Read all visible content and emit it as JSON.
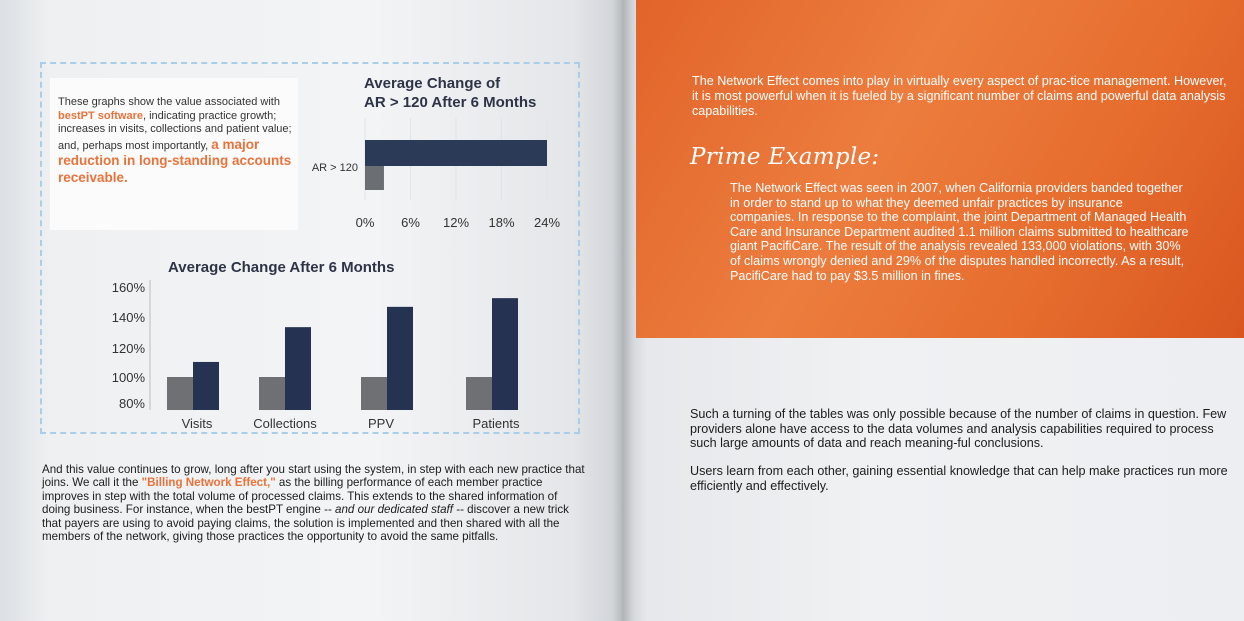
{
  "left_page": {
    "intro": {
      "part1": "These graphs show the value associated with ",
      "highlight": "bestPT software",
      "part2": ", indicating practice growth; increases in visits, collections and patient value; and, perhaps most importantly, ",
      "big_highlight": "a major reduction in long-standing accounts receivable."
    },
    "body": {
      "part1": "And this value continues to grow, long after you start using the system, in step with each new practice that joins. We call it the ",
      "highlight": "\"Billing Network Effect,\"",
      "part2": " as the billing performance of each member practice improves in step with the total volume of processed claims. This extends to the shared information of doing business. For instance, when the bestPT engine -- ",
      "italic": "and our dedicated staff",
      "part3": " -- discover a new trick that payers are using to avoid paying claims, the solution is implemented and then shared with all the members of the network, giving those practices the opportunity to avoid the same pitfalls."
    }
  },
  "chart_data": [
    {
      "type": "bar",
      "orientation": "horizontal",
      "title_line1": "Average Change of",
      "title_line2": "AR > 120 After 6 Months",
      "categories": [
        "AR > 120"
      ],
      "series": [
        {
          "color": "#2b3a57",
          "values": [
            24
          ]
        },
        {
          "color": "#6b6e73",
          "values": [
            2.5
          ]
        }
      ],
      "xticks": [
        "0%",
        "6%",
        "12%",
        "18%",
        "24%"
      ],
      "xlim": [
        0,
        24
      ]
    },
    {
      "type": "bar",
      "title": "Average Change After 6 Months",
      "categories": [
        "Visits",
        "Collections",
        "PPV",
        "Patients"
      ],
      "series": [
        {
          "color": "#6e7074",
          "values": [
            100,
            100,
            100,
            100
          ]
        },
        {
          "color": "#253252",
          "values": [
            109,
            133,
            147,
            153
          ]
        }
      ],
      "yticks": [
        "160%",
        "140%",
        "120%",
        "100%",
        "80%"
      ],
      "ylim": [
        80,
        160
      ]
    }
  ],
  "right_page": {
    "intro": "The Network Effect comes into play in virtually every aspect of prac-tice management. However, it is most powerful when it is fueled by a significant number of claims and powerful data analysis capabilities.",
    "heading": "Prime Example:",
    "example": "The Network Effect was seen in 2007, when California providers banded together in order to stand up to what they deemed unfair practices by insurance companies. In response to the complaint, the joint Department of Managed Health Care and Insurance Department audited 1.1 million claims submitted to healthcare giant PacifiCare. The result of the analysis revealed 133,000 violations, with 30% of claims wrongly denied and 29% of the disputes handled incorrectly. As a result, PacifiCare had to pay $3.5 million in fines.",
    "para1": "Such a turning of the tables was only possible because of the number of claims in question. Few providers alone have access to the data volumes and analysis capabilities required to process such large amounts of data and reach meaning-ful conclusions.",
    "para2": "Users learn from each other, gaining essential knowledge that can help make practices run more efficiently and effectively."
  },
  "colors": {
    "accent_orange": "#e8733a",
    "orange_panel": "#e66d2e",
    "navy_bar": "#253252",
    "gray_bar": "#6e7074",
    "dashed_border": "#a9cfe8"
  }
}
